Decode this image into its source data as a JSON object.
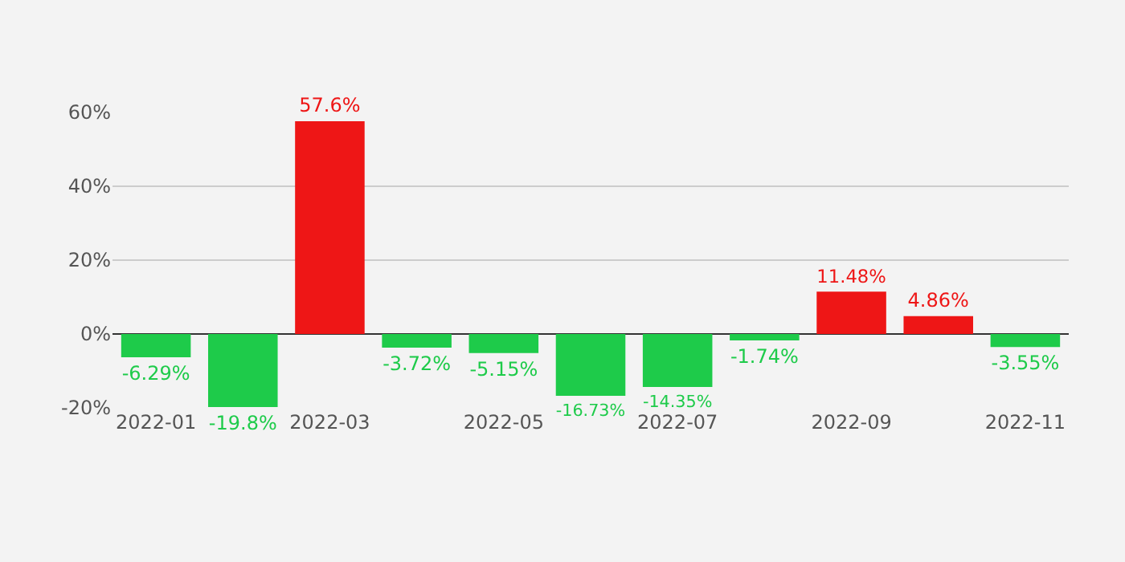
{
  "chart_data": {
    "type": "bar",
    "categories": [
      "2022-01",
      null,
      "2022-03",
      null,
      "2022-05",
      null,
      "2022-07",
      null,
      "2022-09",
      null,
      "2022-11"
    ],
    "values": [
      -6.29,
      -19.8,
      57.6,
      -3.72,
      -5.15,
      -16.73,
      -14.35,
      -1.74,
      11.48,
      4.86,
      -3.55
    ],
    "value_labels": [
      "-6.29%",
      "-19.8%",
      "57.6%",
      "-3.72%",
      "-5.15%",
      "-16.73%",
      "-14.35%",
      "-1.74%",
      "11.48%",
      "4.86%",
      "-3.55%"
    ],
    "colors": [
      "#1ecb4a",
      "#1ecb4a",
      "#ee1616",
      "#1ecb4a",
      "#1ecb4a",
      "#1ecb4a",
      "#1ecb4a",
      "#1ecb4a",
      "#ee1616",
      "#ee1616",
      "#1ecb4a"
    ],
    "ylim": [
      -20,
      60
    ],
    "yticks": [
      {
        "value": -20,
        "label": "-20%"
      },
      {
        "value": 0,
        "label": "0%"
      },
      {
        "value": 20,
        "label": "20%"
      },
      {
        "value": 40,
        "label": "40%"
      },
      {
        "value": 60,
        "label": "60%"
      }
    ],
    "grid": "y",
    "legend": false
  }
}
